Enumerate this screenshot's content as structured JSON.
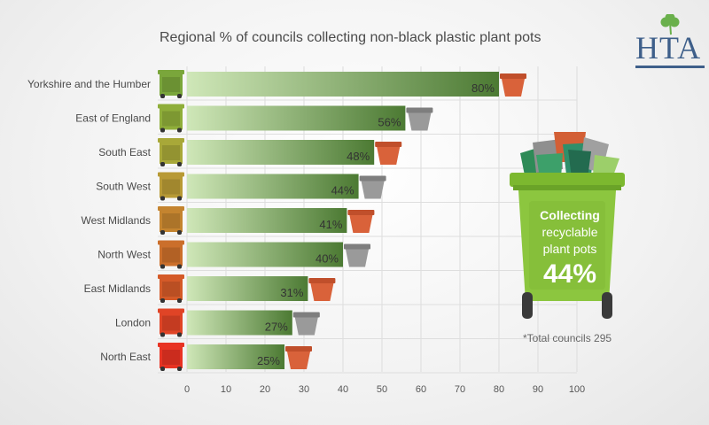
{
  "chart_data": {
    "type": "bar",
    "orientation": "horizontal",
    "title": "Regional % of councils collecting non-black plastic plant pots",
    "categories": [
      "Yorkshire and the Humber",
      "East of England",
      "South East",
      "South West",
      "West Midlands",
      "North West",
      "East Midlands",
      "London",
      "North East"
    ],
    "values": [
      80,
      56,
      48,
      44,
      41,
      40,
      31,
      27,
      25
    ],
    "value_labels": [
      "80%",
      "56%",
      "48%",
      "44%",
      "41%",
      "40%",
      "31%",
      "27%",
      "25%"
    ],
    "xlim": [
      0,
      100
    ],
    "x_ticks": [
      "0",
      "10",
      "20",
      "30",
      "40",
      "50",
      "60",
      "70",
      "80",
      "90",
      "100"
    ],
    "grid": true,
    "legend": "none",
    "bin_colors": [
      "#7aa63b",
      "#8fae3a",
      "#a8a838",
      "#b89a35",
      "#c4842f",
      "#cb6f2b",
      "#d45a28",
      "#e04426",
      "#e83323"
    ],
    "pot_colors": [
      "terracotta",
      "grey",
      "terracotta",
      "grey",
      "terracotta",
      "grey",
      "terracotta",
      "grey",
      "terracotta"
    ],
    "bar_gradient": [
      "#cfe7b8",
      "#4c7a33"
    ]
  },
  "logo": {
    "text": "HTA",
    "icon": "shamrock-icon"
  },
  "bin": {
    "line1": "Collecting",
    "line2": "recyclable",
    "line3": "plant pots",
    "value": "44%",
    "color": "#8cc63f"
  },
  "footnote": "*Total councils 295"
}
